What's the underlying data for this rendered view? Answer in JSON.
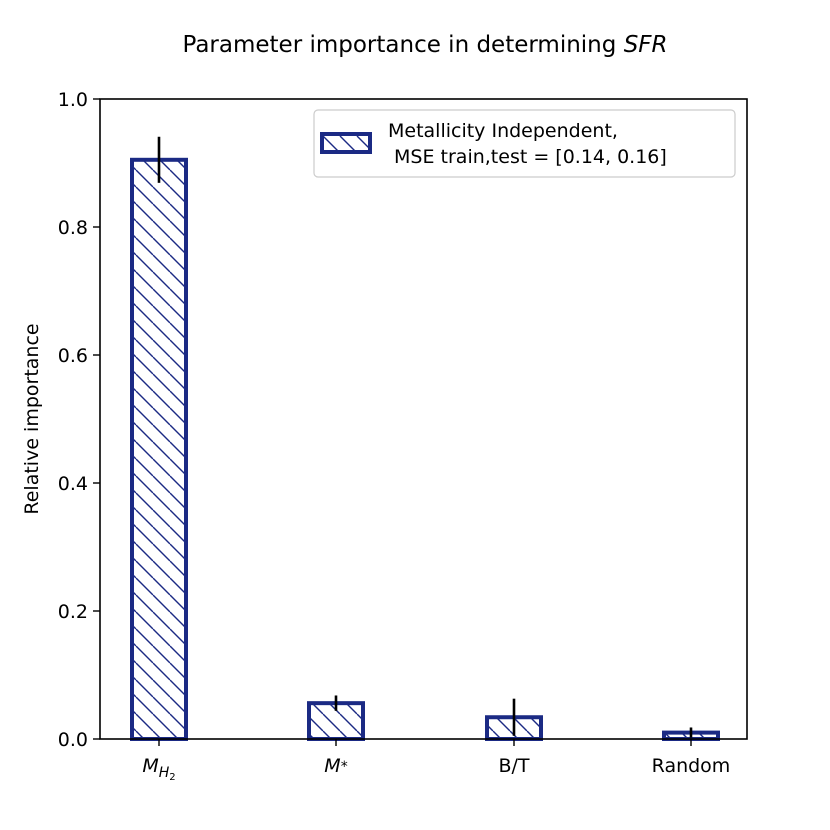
{
  "chart_data": {
    "type": "bar",
    "title_prefix": "Parameter importance in determining ",
    "title_emphasis": "SFR",
    "xlabel": "",
    "ylabel": "Relative importance",
    "ylim": [
      0,
      1.0
    ],
    "yticks": [
      0.0,
      0.2,
      0.4,
      0.6,
      0.8,
      1.0
    ],
    "ytick_labels": [
      "0.0",
      "0.2",
      "0.4",
      "0.6",
      "0.8",
      "1.0"
    ],
    "categories": [
      {
        "base": "M",
        "sub": "H",
        "subsub": "2"
      },
      {
        "base": "M",
        "sub": "*"
      },
      {
        "text": "B/T"
      },
      {
        "text": "Random"
      }
    ],
    "series": [
      {
        "name": "Metallicity Independent, MSE train,test = [0.14, 0.16]",
        "values": [
          0.905,
          0.056,
          0.034,
          0.01
        ],
        "errors": [
          0.036,
          0.012,
          0.029,
          0.008
        ],
        "color": "#1b2a84",
        "hatch": "backslash"
      }
    ],
    "legend": {
      "position": "top-right",
      "line1": "Metallicity Independent,",
      "line2": " MSE train,test = [0.14, 0.16]"
    },
    "grid": false
  }
}
